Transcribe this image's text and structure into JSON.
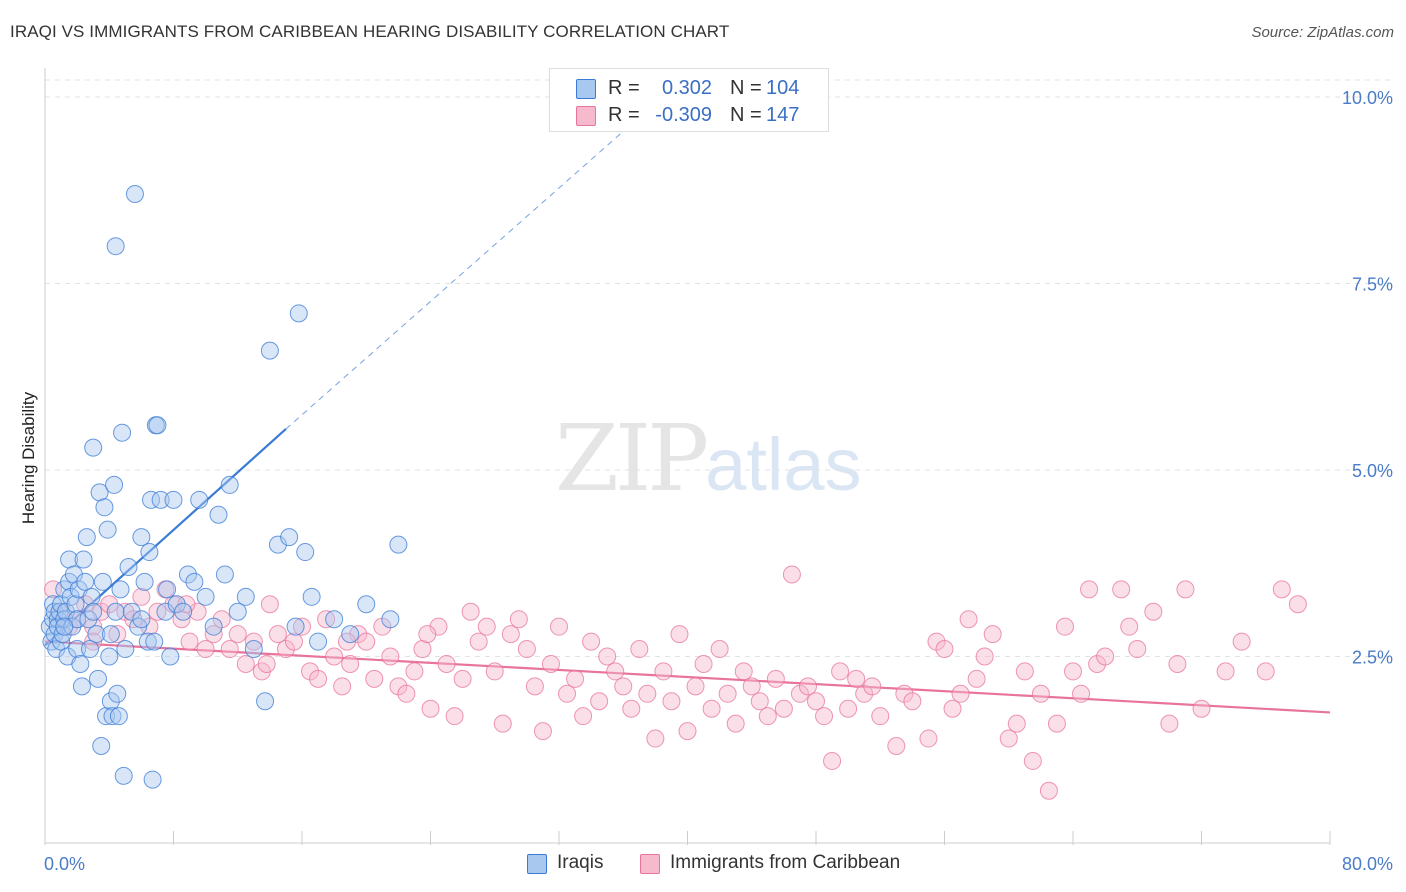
{
  "header": {
    "title": "IRAQI VS IMMIGRANTS FROM CARIBBEAN HEARING DISABILITY CORRELATION CHART",
    "source": "Source: ZipAtlas.com"
  },
  "watermark": {
    "part1": "ZIP",
    "part2": "atlas"
  },
  "legend": {
    "rows": [
      {
        "r_label": "R =",
        "r_value": "0.302",
        "n_label": "N =",
        "n_value": "104",
        "color": "#a9c8f0"
      },
      {
        "r_label": "R =",
        "r_value": "-0.309",
        "n_label": "N =",
        "n_value": "147",
        "color": "#f7b9cc"
      }
    ]
  },
  "bottom_legend": {
    "items": [
      {
        "label": "Iraqis",
        "color": "#a9c8f0"
      },
      {
        "label": "Immigrants from Caribbean",
        "color": "#f7b9cc"
      }
    ]
  },
  "chart_data": {
    "type": "scatter",
    "title": "IRAQI VS IMMIGRANTS FROM CARIBBEAN HEARING DISABILITY CORRELATION CHART",
    "xlabel": "",
    "ylabel": "Hearing Disability",
    "xlim": [
      0,
      80
    ],
    "ylim": [
      0,
      10.0
    ],
    "x_ticks": [
      "0.0%",
      "80.0%"
    ],
    "y_ticks": [
      {
        "value": 2.5,
        "label": "2.5%"
      },
      {
        "value": 5.0,
        "label": "5.0%"
      },
      {
        "value": 7.5,
        "label": "7.5%"
      },
      {
        "value": 10.0,
        "label": "10.0%"
      }
    ],
    "grid": true,
    "legend_position": "top-center",
    "colors": {
      "iraqis": "#3a7bd5",
      "caribbean": "#e8739c",
      "iraqis_fill": "#a9c8f0",
      "caribbean_fill": "#f7b9cc"
    },
    "series": [
      {
        "name": "Iraqis",
        "points": [
          [
            0.3,
            2.9
          ],
          [
            0.4,
            2.7
          ],
          [
            0.5,
            3.0
          ],
          [
            0.5,
            3.2
          ],
          [
            0.6,
            2.8
          ],
          [
            0.6,
            3.1
          ],
          [
            0.7,
            2.6
          ],
          [
            0.8,
            3.0
          ],
          [
            0.8,
            2.9
          ],
          [
            0.9,
            3.1
          ],
          [
            1.0,
            3.2
          ],
          [
            1.0,
            2.7
          ],
          [
            1.1,
            2.8
          ],
          [
            1.2,
            3.0
          ],
          [
            1.2,
            3.4
          ],
          [
            1.3,
            3.1
          ],
          [
            1.4,
            2.5
          ],
          [
            1.5,
            3.5
          ],
          [
            1.5,
            3.8
          ],
          [
            1.6,
            3.3
          ],
          [
            1.7,
            2.9
          ],
          [
            1.8,
            3.6
          ],
          [
            1.9,
            3.2
          ],
          [
            2.0,
            2.6
          ],
          [
            2.0,
            3.0
          ],
          [
            2.1,
            3.4
          ],
          [
            2.2,
            2.4
          ],
          [
            2.3,
            2.1
          ],
          [
            2.4,
            3.8
          ],
          [
            2.5,
            3.5
          ],
          [
            2.6,
            4.1
          ],
          [
            2.7,
            3.0
          ],
          [
            2.8,
            2.6
          ],
          [
            2.9,
            3.3
          ],
          [
            3.0,
            5.3
          ],
          [
            3.0,
            3.1
          ],
          [
            3.2,
            2.8
          ],
          [
            3.3,
            2.2
          ],
          [
            3.4,
            4.7
          ],
          [
            3.5,
            1.3
          ],
          [
            3.6,
            3.5
          ],
          [
            3.7,
            4.5
          ],
          [
            3.8,
            1.7
          ],
          [
            3.9,
            4.2
          ],
          [
            4.0,
            2.5
          ],
          [
            4.1,
            1.9
          ],
          [
            4.1,
            2.8
          ],
          [
            4.2,
            1.7
          ],
          [
            4.3,
            4.8
          ],
          [
            4.4,
            3.1
          ],
          [
            4.4,
            8.0
          ],
          [
            4.5,
            2.0
          ],
          [
            4.6,
            1.7
          ],
          [
            4.7,
            3.4
          ],
          [
            4.8,
            5.5
          ],
          [
            4.9,
            0.9
          ],
          [
            5.0,
            2.6
          ],
          [
            5.2,
            3.7
          ],
          [
            5.4,
            3.1
          ],
          [
            5.6,
            8.7
          ],
          [
            5.8,
            2.9
          ],
          [
            6.0,
            4.1
          ],
          [
            6.0,
            3.0
          ],
          [
            6.2,
            3.5
          ],
          [
            6.4,
            2.7
          ],
          [
            6.5,
            3.9
          ],
          [
            6.6,
            4.6
          ],
          [
            6.7,
            0.85
          ],
          [
            6.8,
            2.7
          ],
          [
            6.9,
            5.6
          ],
          [
            7.0,
            5.6
          ],
          [
            7.2,
            4.6
          ],
          [
            7.5,
            3.1
          ],
          [
            7.6,
            3.4
          ],
          [
            7.8,
            2.5
          ],
          [
            8.0,
            4.6
          ],
          [
            8.2,
            3.2
          ],
          [
            8.6,
            3.1
          ],
          [
            8.9,
            3.6
          ],
          [
            9.3,
            3.5
          ],
          [
            9.6,
            4.6
          ],
          [
            10.0,
            3.3
          ],
          [
            10.5,
            2.9
          ],
          [
            10.8,
            4.4
          ],
          [
            11.2,
            3.6
          ],
          [
            11.5,
            4.8
          ],
          [
            12.0,
            3.1
          ],
          [
            12.5,
            3.3
          ],
          [
            13.0,
            2.6
          ],
          [
            13.7,
            1.9
          ],
          [
            14.0,
            6.6
          ],
          [
            14.5,
            4.0
          ],
          [
            15.2,
            4.1
          ],
          [
            15.6,
            2.9
          ],
          [
            15.8,
            7.1
          ],
          [
            16.2,
            3.9
          ],
          [
            16.6,
            3.3
          ],
          [
            17.0,
            2.7
          ],
          [
            18.0,
            3.0
          ],
          [
            19.0,
            2.8
          ],
          [
            20.0,
            3.2
          ],
          [
            21.5,
            3.0
          ],
          [
            22.0,
            4.0
          ],
          [
            1.2,
            2.9
          ]
        ]
      },
      {
        "name": "Immigrants from Caribbean",
        "points": [
          [
            0.5,
            3.4
          ],
          [
            1.0,
            3.1
          ],
          [
            1.5,
            2.9
          ],
          [
            2.0,
            3.0
          ],
          [
            2.5,
            3.2
          ],
          [
            3.0,
            2.9
          ],
          [
            3.5,
            3.1
          ],
          [
            4.0,
            3.2
          ],
          [
            4.5,
            2.8
          ],
          [
            5.0,
            3.1
          ],
          [
            5.5,
            3.0
          ],
          [
            6.0,
            3.3
          ],
          [
            6.5,
            2.9
          ],
          [
            7.0,
            3.1
          ],
          [
            7.5,
            3.4
          ],
          [
            8.0,
            3.2
          ],
          [
            8.5,
            3.0
          ],
          [
            9.0,
            2.7
          ],
          [
            9.5,
            3.1
          ],
          [
            10.0,
            2.6
          ],
          [
            10.5,
            2.8
          ],
          [
            11.0,
            3.0
          ],
          [
            11.5,
            2.6
          ],
          [
            12.0,
            2.8
          ],
          [
            12.5,
            2.4
          ],
          [
            13.0,
            2.7
          ],
          [
            13.5,
            2.3
          ],
          [
            14.0,
            3.2
          ],
          [
            14.5,
            2.8
          ],
          [
            15.0,
            2.6
          ],
          [
            15.5,
            2.7
          ],
          [
            16.0,
            2.9
          ],
          [
            16.5,
            2.3
          ],
          [
            17.0,
            2.2
          ],
          [
            17.5,
            3.0
          ],
          [
            18.0,
            2.5
          ],
          [
            18.5,
            2.1
          ],
          [
            19.0,
            2.4
          ],
          [
            19.5,
            2.8
          ],
          [
            20.0,
            2.7
          ],
          [
            20.5,
            2.2
          ],
          [
            21.0,
            2.9
          ],
          [
            21.5,
            2.5
          ],
          [
            22.0,
            2.1
          ],
          [
            22.5,
            2.0
          ],
          [
            23.0,
            2.3
          ],
          [
            23.5,
            2.6
          ],
          [
            24.0,
            1.8
          ],
          [
            24.5,
            2.9
          ],
          [
            25.0,
            2.4
          ],
          [
            25.5,
            1.7
          ],
          [
            26.0,
            2.2
          ],
          [
            26.5,
            3.1
          ],
          [
            27.0,
            2.7
          ],
          [
            27.5,
            2.9
          ],
          [
            28.0,
            2.3
          ],
          [
            28.5,
            1.6
          ],
          [
            29.0,
            2.8
          ],
          [
            29.5,
            3.0
          ],
          [
            30.0,
            2.6
          ],
          [
            30.5,
            2.1
          ],
          [
            31.0,
            1.5
          ],
          [
            31.5,
            2.4
          ],
          [
            32.0,
            2.9
          ],
          [
            32.5,
            2.0
          ],
          [
            33.0,
            2.2
          ],
          [
            33.5,
            1.7
          ],
          [
            34.0,
            2.7
          ],
          [
            34.5,
            1.9
          ],
          [
            35.0,
            2.5
          ],
          [
            35.5,
            2.3
          ],
          [
            36.0,
            2.1
          ],
          [
            36.5,
            1.8
          ],
          [
            37.0,
            2.6
          ],
          [
            37.5,
            2.0
          ],
          [
            38.0,
            1.4
          ],
          [
            38.5,
            2.3
          ],
          [
            39.0,
            1.9
          ],
          [
            39.5,
            2.8
          ],
          [
            40.0,
            1.5
          ],
          [
            40.5,
            2.1
          ],
          [
            41.0,
            2.4
          ],
          [
            41.5,
            1.8
          ],
          [
            42.0,
            2.6
          ],
          [
            42.5,
            2.0
          ],
          [
            43.0,
            1.6
          ],
          [
            43.5,
            2.3
          ],
          [
            44.0,
            2.1
          ],
          [
            44.5,
            1.9
          ],
          [
            45.0,
            1.7
          ],
          [
            45.5,
            2.2
          ],
          [
            46.0,
            1.8
          ],
          [
            46.5,
            3.6
          ],
          [
            47.0,
            2.0
          ],
          [
            47.5,
            2.1
          ],
          [
            48.0,
            1.9
          ],
          [
            48.5,
            1.7
          ],
          [
            49.0,
            1.1
          ],
          [
            49.5,
            2.3
          ],
          [
            50.0,
            1.8
          ],
          [
            50.5,
            2.2
          ],
          [
            51.0,
            2.0
          ],
          [
            51.5,
            2.1
          ],
          [
            52.0,
            1.7
          ],
          [
            53.0,
            1.3
          ],
          [
            53.5,
            2.0
          ],
          [
            54.0,
            1.9
          ],
          [
            55.0,
            1.4
          ],
          [
            55.5,
            2.7
          ],
          [
            56.0,
            2.6
          ],
          [
            56.5,
            1.8
          ],
          [
            57.0,
            2.0
          ],
          [
            57.5,
            3.0
          ],
          [
            58.0,
            2.2
          ],
          [
            58.5,
            2.5
          ],
          [
            59.0,
            2.8
          ],
          [
            60.0,
            1.4
          ],
          [
            60.5,
            1.6
          ],
          [
            61.0,
            2.3
          ],
          [
            61.5,
            1.1
          ],
          [
            62.0,
            2.0
          ],
          [
            62.5,
            0.7
          ],
          [
            63.0,
            1.6
          ],
          [
            63.5,
            2.9
          ],
          [
            64.0,
            2.3
          ],
          [
            64.5,
            2.0
          ],
          [
            65.0,
            3.4
          ],
          [
            65.5,
            2.4
          ],
          [
            66.0,
            2.5
          ],
          [
            67.0,
            3.4
          ],
          [
            67.5,
            2.9
          ],
          [
            68.0,
            2.6
          ],
          [
            69.0,
            3.1
          ],
          [
            70.0,
            1.6
          ],
          [
            70.5,
            2.4
          ],
          [
            71.0,
            3.4
          ],
          [
            72.0,
            1.8
          ],
          [
            73.5,
            2.3
          ],
          [
            74.5,
            2.7
          ],
          [
            76.0,
            2.3
          ],
          [
            77.0,
            3.4
          ],
          [
            78.0,
            3.2
          ],
          [
            3.0,
            2.7
          ],
          [
            8.8,
            3.2
          ],
          [
            13.8,
            2.4
          ],
          [
            18.8,
            2.7
          ],
          [
            23.8,
            2.8
          ]
        ]
      }
    ],
    "trendlines": [
      {
        "series": "Iraqis",
        "x": [
          0.0,
          15.0
        ],
        "y": [
          2.65,
          5.55
        ],
        "extended_to": [
          40.0,
          10.3
        ],
        "dashed_extension": true
      },
      {
        "series": "Immigrants from Caribbean",
        "x": [
          0.0,
          80.0
        ],
        "y": [
          2.7,
          1.75
        ]
      }
    ]
  }
}
